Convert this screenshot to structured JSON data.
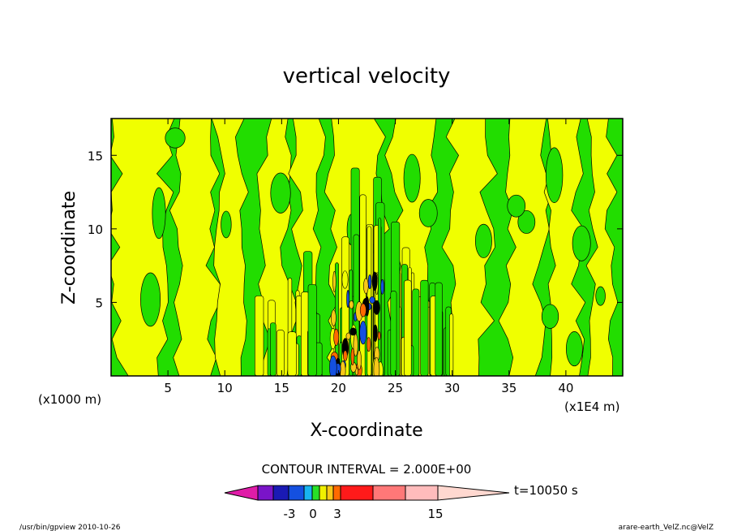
{
  "chart_data": {
    "type": "heatmap",
    "title": "vertical velocity",
    "xlabel": "X-coordinate",
    "ylabel": "Z-coordinate",
    "x_unit_left": "(x1000 m)",
    "x_unit_right": "(x1E4 m)",
    "x_ticks": [
      "5",
      "10",
      "15",
      "20",
      "25",
      "30",
      "35",
      "40"
    ],
    "y_ticks": [
      "5",
      "10",
      "15"
    ],
    "xlim": [
      0,
      45
    ],
    "ylim": [
      0,
      17.5
    ],
    "contour_interval_label": "CONTOUR INTERVAL = 2.000E+00",
    "time_label": "t=10050 s",
    "colorbar_labels": [
      "-3",
      "0",
      "3",
      "15"
    ],
    "colorbar_colors": [
      "#e01ca8",
      "#7a14c8",
      "#1a1ab4",
      "#1450e0",
      "#18b4f0",
      "#28e028",
      "#f0f000",
      "#f8c818",
      "#ff6a00",
      "#ff1a1a",
      "#ff7878",
      "#ffbcbc",
      "#ffd8d0"
    ],
    "field_colors": {
      "negative_small": "#22dd00",
      "positive_small": "#f0ff00",
      "positive_mid": "#f8c818",
      "positive_high": "#ff6a00",
      "negative_mid": "#1450e0",
      "contour": "#000000"
    },
    "regions": [
      {
        "band": "x 0–12",
        "value_sign": "mixed small",
        "structure": "broad vertical yellow/green columns"
      },
      {
        "band": "x 13–30",
        "value_sign": "strong updrafts/downdrafts",
        "structure": "narrow vertical cells, peak near x 20–23, z 0–7"
      },
      {
        "band": "x 30–45",
        "value_sign": "mixed small",
        "structure": "broad vertical yellow/green columns"
      }
    ]
  },
  "footer": {
    "left": "/usr/bin/gpview   2010-10-26",
    "right": "arare-earth_VelZ.nc@VelZ"
  }
}
